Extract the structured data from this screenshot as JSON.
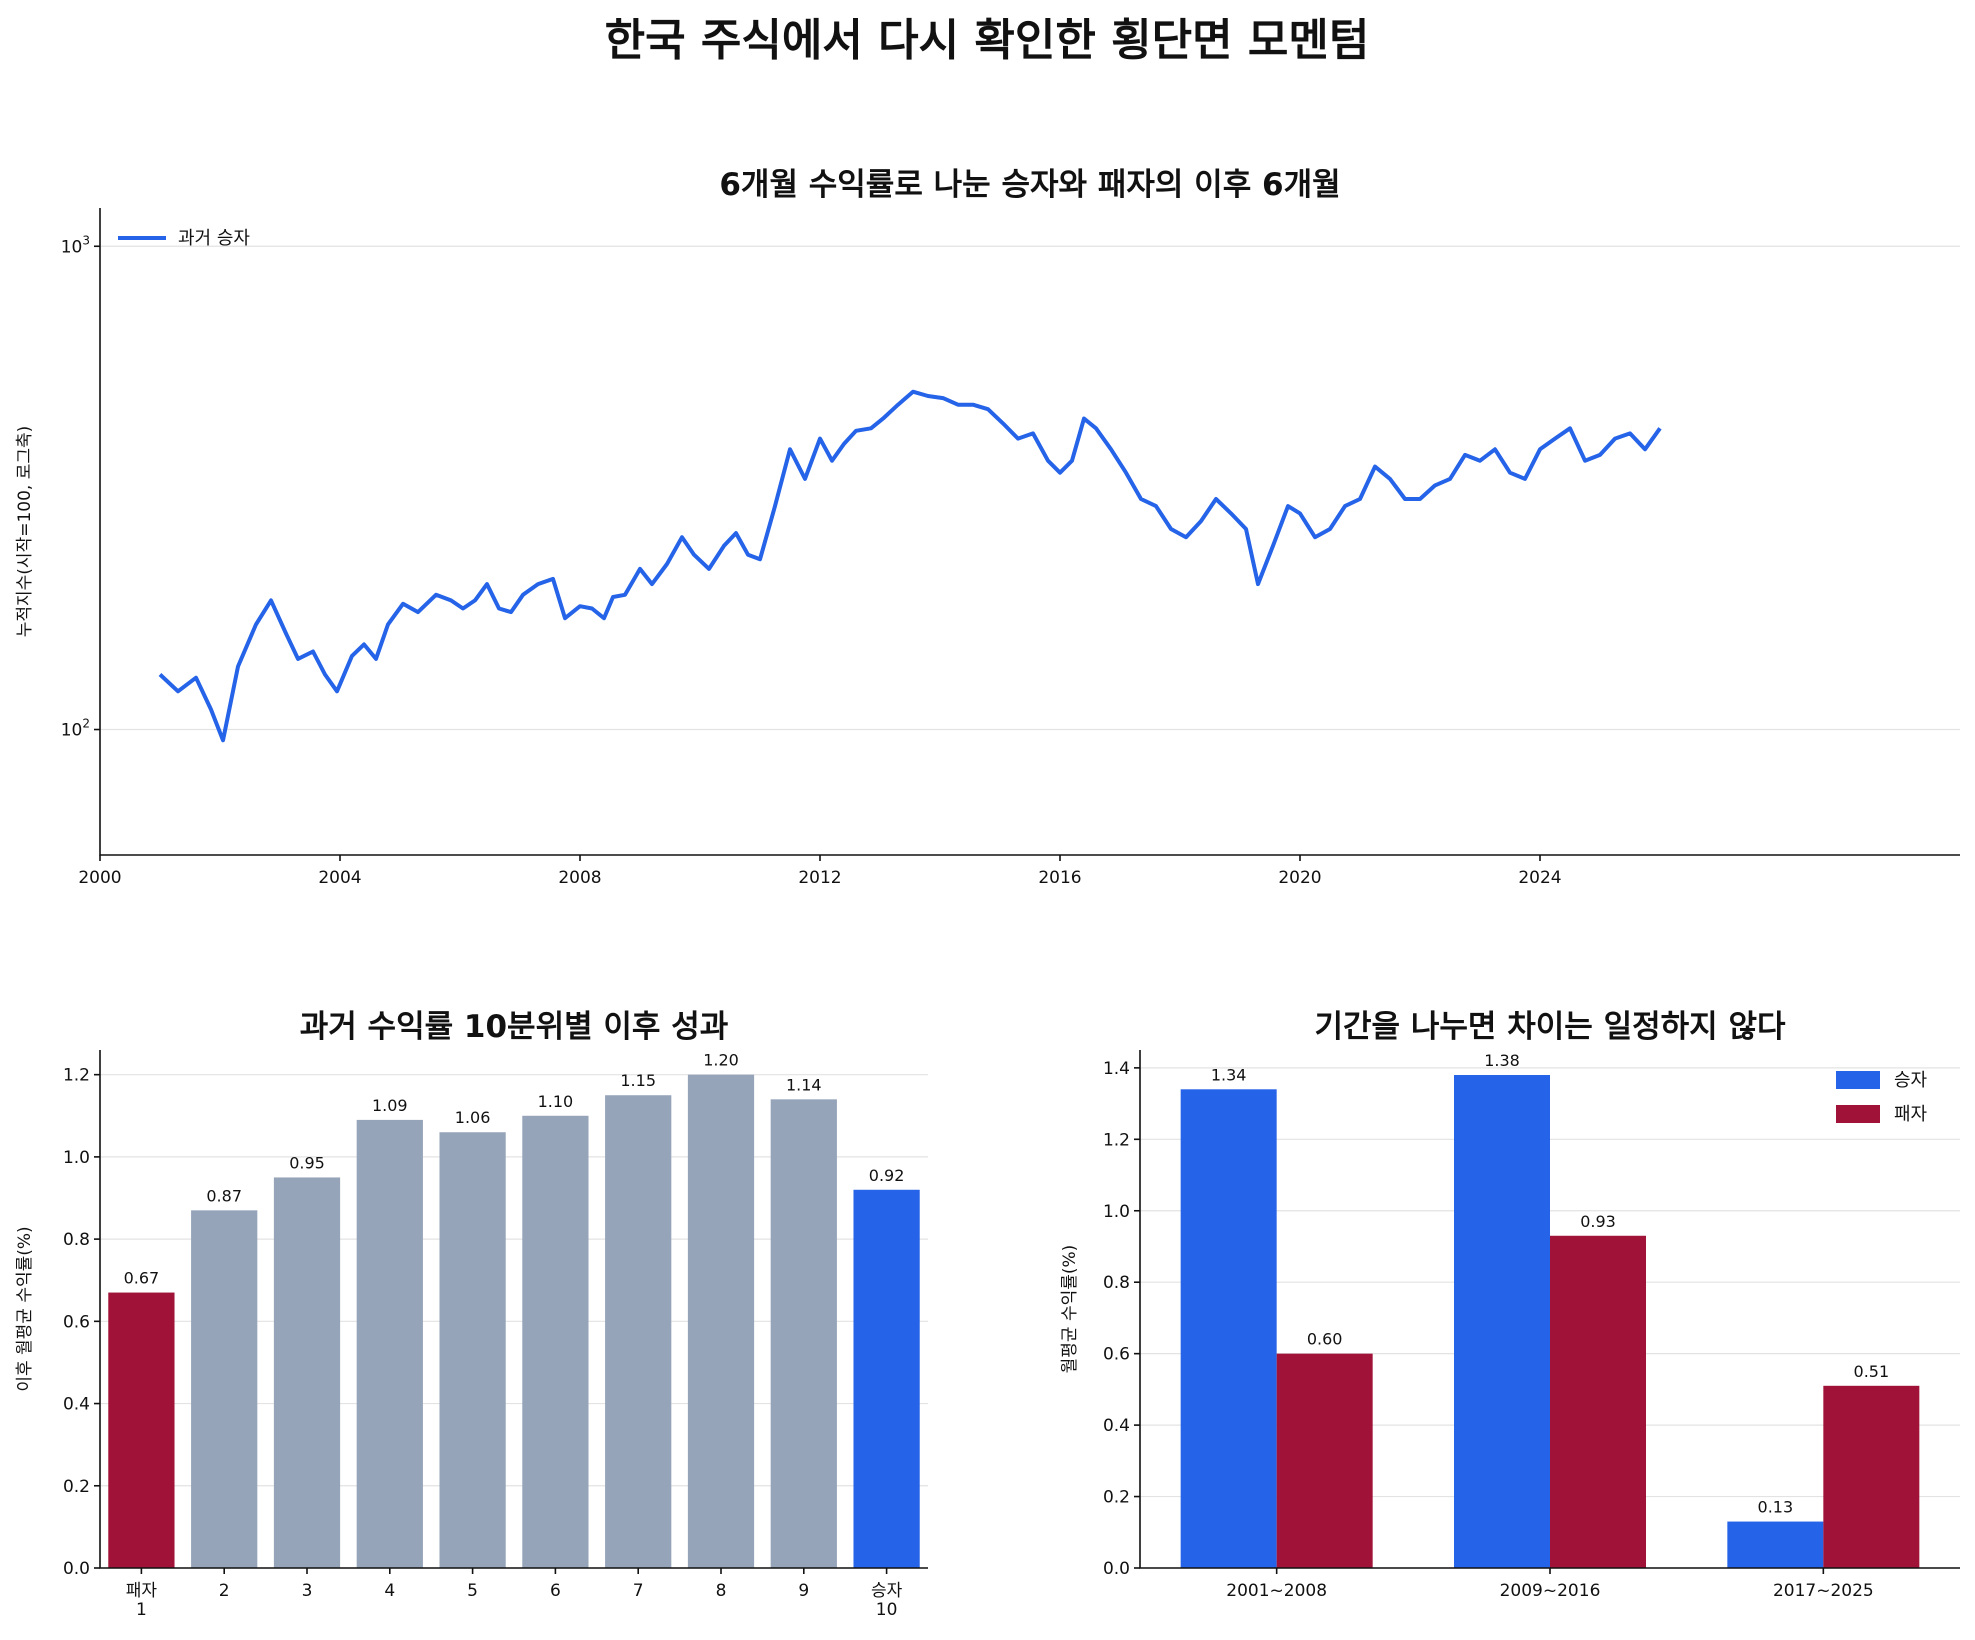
{
  "figure": {
    "suptitle": "한국 주식에서 다시 확인한 횡단면 모멘텀"
  },
  "colors": {
    "winner": "#2563e8",
    "loser": "#a01238",
    "avg": "#c59a3f",
    "neutral": "#96a4b9"
  },
  "chart_data": [
    {
      "type": "line",
      "title": "6개월 수익률로 나눈 승자와 패자의 이후 6개월",
      "ylabel": "누적지수(시작=100, 로그축)",
      "xlabel": "",
      "yscale": "log",
      "ylim": [
        55,
        1200
      ],
      "xlim": [
        2000,
        2031
      ],
      "x_ticks": [
        "2000",
        "2004",
        "2008",
        "2012",
        "2016",
        "2020",
        "2024"
      ],
      "y_ticks": [
        {
          "value": 100,
          "base": "10",
          "exp": "2"
        },
        {
          "value": 1000,
          "base": "10",
          "exp": "3"
        }
      ],
      "grid": "y",
      "legend_position": "top-left",
      "series": [
        {
          "name": "과거 승자",
          "color_key": "winner",
          "points": [
            [
              2001.0,
              130
            ],
            [
              2001.3,
              120
            ],
            [
              2001.6,
              128
            ],
            [
              2001.85,
              110
            ],
            [
              2002.05,
              95
            ],
            [
              2002.3,
              135
            ],
            [
              2002.6,
              165
            ],
            [
              2002.85,
              185
            ],
            [
              2003.1,
              158
            ],
            [
              2003.3,
              140
            ],
            [
              2003.55,
              145
            ],
            [
              2003.75,
              130
            ],
            [
              2003.95,
              120
            ],
            [
              2004.2,
              142
            ],
            [
              2004.4,
              150
            ],
            [
              2004.6,
              140
            ],
            [
              2004.8,
              165
            ],
            [
              2005.05,
              182
            ],
            [
              2005.3,
              175
            ],
            [
              2005.6,
              190
            ],
            [
              2005.85,
              185
            ],
            [
              2006.05,
              178
            ],
            [
              2006.25,
              185
            ],
            [
              2006.45,
              200
            ],
            [
              2006.65,
              178
            ],
            [
              2006.85,
              175
            ],
            [
              2007.05,
              190
            ],
            [
              2007.3,
              200
            ],
            [
              2007.55,
              205
            ],
            [
              2007.75,
              170
            ],
            [
              2008.0,
              180
            ],
            [
              2008.2,
              178
            ],
            [
              2008.4,
              170
            ],
            [
              2008.55,
              188
            ],
            [
              2008.75,
              190
            ],
            [
              2009.0,
              215
            ],
            [
              2009.2,
              200
            ],
            [
              2009.45,
              220
            ],
            [
              2009.7,
              250
            ],
            [
              2009.9,
              230
            ],
            [
              2010.15,
              215
            ],
            [
              2010.4,
              240
            ],
            [
              2010.6,
              255
            ],
            [
              2010.8,
              230
            ],
            [
              2011.0,
              225
            ],
            [
              2011.25,
              290
            ],
            [
              2011.5,
              380
            ],
            [
              2011.75,
              330
            ],
            [
              2012.0,
              400
            ],
            [
              2012.2,
              360
            ],
            [
              2012.4,
              390
            ],
            [
              2012.6,
              415
            ],
            [
              2012.85,
              420
            ],
            [
              2013.05,
              440
            ],
            [
              2013.3,
              470
            ],
            [
              2013.55,
              500
            ],
            [
              2013.8,
              490
            ],
            [
              2014.05,
              485
            ],
            [
              2014.3,
              470
            ],
            [
              2014.55,
              470
            ],
            [
              2014.8,
              460
            ],
            [
              2015.05,
              430
            ],
            [
              2015.3,
              400
            ],
            [
              2015.55,
              410
            ],
            [
              2015.8,
              360
            ],
            [
              2016.0,
              340
            ],
            [
              2016.2,
              360
            ],
            [
              2016.4,
              440
            ],
            [
              2016.6,
              420
            ],
            [
              2016.85,
              380
            ],
            [
              2017.1,
              340
            ],
            [
              2017.35,
              300
            ],
            [
              2017.6,
              290
            ],
            [
              2017.85,
              260
            ],
            [
              2018.1,
              250
            ],
            [
              2018.35,
              270
            ],
            [
              2018.6,
              300
            ],
            [
              2018.85,
              280
            ],
            [
              2019.1,
              260
            ],
            [
              2019.3,
              200
            ],
            [
              2019.55,
              240
            ],
            [
              2019.8,
              290
            ],
            [
              2020.0,
              280
            ],
            [
              2020.25,
              250
            ],
            [
              2020.5,
              260
            ],
            [
              2020.75,
              290
            ],
            [
              2021.0,
              300
            ],
            [
              2021.25,
              350
            ],
            [
              2021.5,
              330
            ],
            [
              2021.75,
              300
            ],
            [
              2022.0,
              300
            ],
            [
              2022.25,
              320
            ],
            [
              2022.5,
              330
            ],
            [
              2022.75,
              370
            ],
            [
              2023.0,
              360
            ],
            [
              2023.25,
              380
            ],
            [
              2023.5,
              340
            ],
            [
              2023.75,
              330
            ],
            [
              2024.0,
              380
            ],
            [
              2024.25,
              400
            ],
            [
              2024.5,
              420
            ],
            [
              2024.75,
              360
            ],
            [
              2025.0,
              370
            ],
            [
              2025.25,
              400
            ],
            [
              2025.5,
              410
            ],
            [
              2025.75,
              380
            ],
            [
              2026.0,
              420
            ]
          ]
        }
      ]
    },
    {
      "type": "bar",
      "title": "과거 수익률 10분위별 이후 성과",
      "ylabel": "이후 월평균 수익률(%)",
      "xlabel": "",
      "ylim": [
        0,
        1.26
      ],
      "y_ticks": [
        "0.0",
        "0.2",
        "0.4",
        "0.6",
        "0.8",
        "1.0",
        "1.2"
      ],
      "categories": [
        [
          "패자",
          "1"
        ],
        [
          "2"
        ],
        [
          "3"
        ],
        [
          "4"
        ],
        [
          "5"
        ],
        [
          "6"
        ],
        [
          "7"
        ],
        [
          "8"
        ],
        [
          "9"
        ],
        [
          "승자",
          "10"
        ]
      ],
      "values": [
        0.67,
        0.87,
        0.95,
        1.09,
        1.06,
        1.1,
        1.15,
        1.2,
        1.14,
        0.92
      ],
      "value_labels": [
        "0.67",
        "0.87",
        "0.95",
        "1.09",
        "1.06",
        "1.10",
        "1.15",
        "1.20",
        "1.14",
        "0.92"
      ],
      "bar_color_keys": [
        "loser",
        "neutral",
        "neutral",
        "neutral",
        "neutral",
        "neutral",
        "neutral",
        "neutral",
        "neutral",
        "winner"
      ],
      "grid": "y"
    },
    {
      "type": "bar",
      "title": "기간을 나누면 차이는 일정하지 않다",
      "ylabel": "월평균 수익률(%)",
      "xlabel": "",
      "ylim": [
        0,
        1.45
      ],
      "y_ticks": [
        "0.0",
        "0.2",
        "0.4",
        "0.6",
        "0.8",
        "1.0",
        "1.2",
        "1.4"
      ],
      "categories": [
        "2001~2008",
        "2009~2016",
        "2017~2025"
      ],
      "legend_position": "top-right",
      "grid": "y",
      "series": [
        {
          "name": "승자",
          "color_key": "winner",
          "values": [
            1.34,
            1.38,
            0.13
          ],
          "value_labels": [
            "1.34",
            "1.38",
            "0.13"
          ]
        },
        {
          "name": "패자",
          "color_key": "loser",
          "values": [
            0.6,
            0.93,
            0.51
          ],
          "value_labels": [
            "0.60",
            "0.93",
            "0.51"
          ]
        }
      ]
    }
  ]
}
